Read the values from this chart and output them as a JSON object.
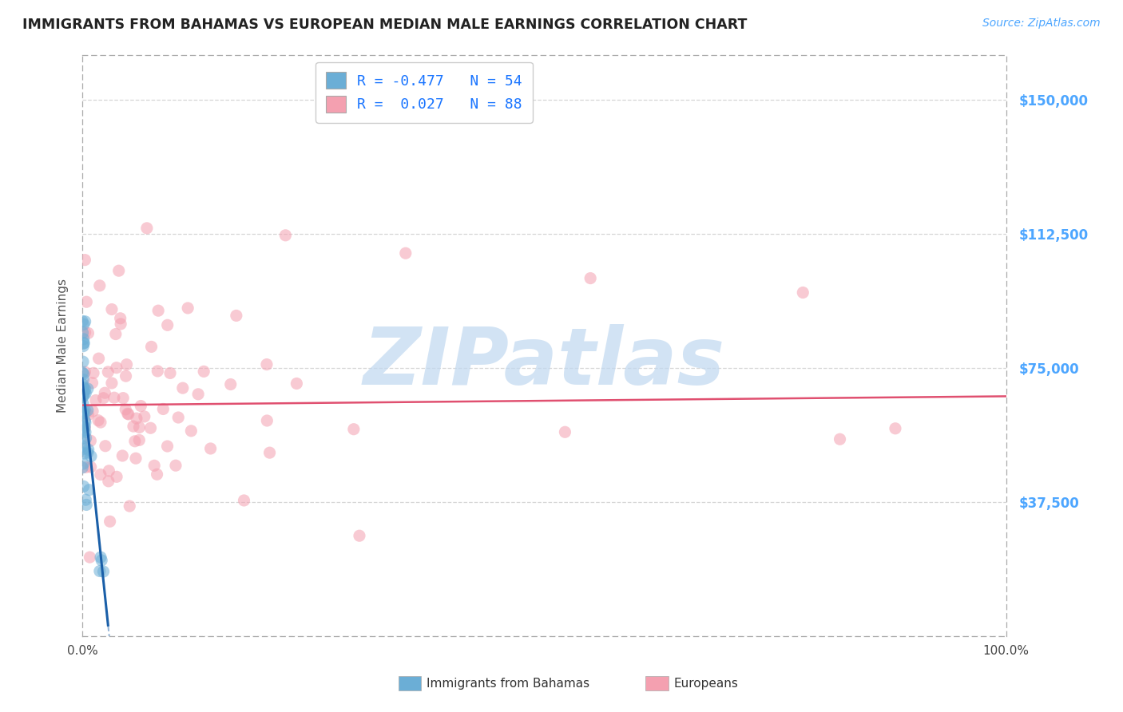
{
  "title": "IMMIGRANTS FROM BAHAMAS VS EUROPEAN MEDIAN MALE EARNINGS CORRELATION CHART",
  "source": "Source: ZipAtlas.com",
  "ylabel": "Median Male Earnings",
  "xlim": [
    0,
    100
  ],
  "ylim": [
    0,
    162500
  ],
  "yticks": [
    0,
    37500,
    75000,
    112500,
    150000
  ],
  "ytick_labels": [
    "",
    "$37,500",
    "$75,000",
    "$112,500",
    "$150,000"
  ],
  "legend_blue_label": "R = -0.477   N = 54",
  "legend_pink_label": "R =  0.027   N = 88",
  "blue_color": "#6baed6",
  "pink_color": "#f4a0b0",
  "blue_line_color": "#1a5fa8",
  "pink_line_color": "#e05070",
  "ytick_color": "#4da6ff",
  "background_color": "#ffffff",
  "grid_color": "#cccccc",
  "blue_N": 54,
  "pink_N": 88,
  "blue_trend_x0": 0.0,
  "blue_trend_y0": 72000,
  "blue_trend_x1": 2.8,
  "blue_trend_y1": 3000,
  "blue_dash_x1": 2.8,
  "blue_dash_x2": 5.5,
  "pink_trend_x0": 0.0,
  "pink_trend_y0": 64500,
  "pink_trend_x1": 100.0,
  "pink_trend_y1": 67000,
  "watermark_text": "ZIPatlas",
  "watermark_color": "#c0d8f0",
  "scatter_size": 120,
  "scatter_alpha": 0.55
}
